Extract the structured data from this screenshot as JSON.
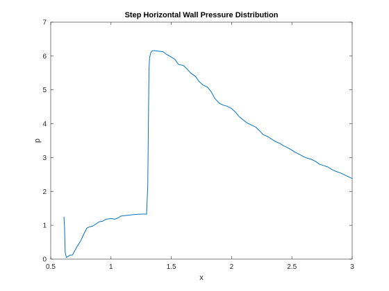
{
  "chart_data": {
    "type": "line",
    "title": "Step Horizontal Wall Pressure Distribution",
    "xlabel": "x",
    "ylabel": "p",
    "xlim": [
      0.5,
      3
    ],
    "ylim": [
      0,
      7
    ],
    "xticks": [
      0.5,
      1,
      1.5,
      2,
      2.5,
      3
    ],
    "xtick_labels": [
      "0.5",
      "1",
      "1.5",
      "2",
      "2.5",
      "3"
    ],
    "yticks": [
      0,
      1,
      2,
      3,
      4,
      5,
      6,
      7
    ],
    "ytick_labels": [
      "0",
      "1",
      "2",
      "3",
      "4",
      "5",
      "6",
      "7"
    ],
    "grid": false,
    "box": true,
    "series": [
      {
        "color": "#0072BD",
        "x": [
          0.61,
          0.615,
          0.62,
          0.63,
          0.645,
          0.66,
          0.68,
          0.7,
          0.72,
          0.75,
          0.78,
          0.8,
          0.82,
          0.85,
          0.88,
          0.9,
          0.93,
          0.96,
          1.0,
          1.03,
          1.06,
          1.08,
          1.1,
          1.15,
          1.2,
          1.25,
          1.28,
          1.295,
          1.305,
          1.31,
          1.315,
          1.32,
          1.33,
          1.34,
          1.36,
          1.38,
          1.4,
          1.43,
          1.46,
          1.5,
          1.53,
          1.56,
          1.6,
          1.63,
          1.66,
          1.7,
          1.73,
          1.76,
          1.8,
          1.83,
          1.86,
          1.9,
          1.93,
          1.96,
          2.0,
          2.03,
          2.06,
          2.1,
          2.13,
          2.16,
          2.2,
          2.23,
          2.26,
          2.3,
          2.33,
          2.36,
          2.4,
          2.43,
          2.46,
          2.5,
          2.53,
          2.56,
          2.6,
          2.63,
          2.66,
          2.7,
          2.73,
          2.76,
          2.8,
          2.83,
          2.86,
          2.9,
          2.93,
          2.96,
          3.0
        ],
        "y": [
          1.25,
          0.9,
          0.2,
          0.05,
          0.08,
          0.12,
          0.12,
          0.25,
          0.38,
          0.55,
          0.78,
          0.92,
          0.95,
          0.98,
          1.05,
          1.1,
          1.12,
          1.18,
          1.2,
          1.18,
          1.22,
          1.27,
          1.28,
          1.3,
          1.32,
          1.33,
          1.33,
          1.33,
          2.2,
          4.0,
          5.6,
          5.95,
          6.1,
          6.15,
          6.16,
          6.15,
          6.14,
          6.13,
          6.05,
          5.97,
          5.9,
          5.75,
          5.72,
          5.62,
          5.5,
          5.4,
          5.25,
          5.15,
          5.08,
          4.95,
          4.75,
          4.6,
          4.55,
          4.52,
          4.45,
          4.35,
          4.22,
          4.1,
          4.02,
          3.97,
          3.9,
          3.8,
          3.68,
          3.62,
          3.55,
          3.48,
          3.42,
          3.35,
          3.3,
          3.22,
          3.15,
          3.1,
          3.02,
          2.98,
          2.95,
          2.88,
          2.8,
          2.77,
          2.72,
          2.65,
          2.6,
          2.55,
          2.5,
          2.45,
          2.38
        ]
      }
    ]
  }
}
